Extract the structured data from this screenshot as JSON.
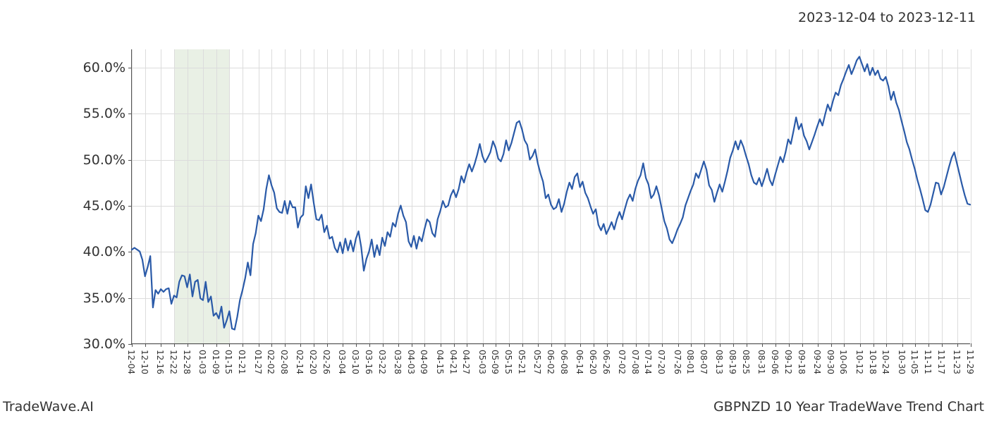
{
  "header": {
    "date_range": "2023-12-04 to 2023-12-11"
  },
  "footer": {
    "left": "TradeWave.AI",
    "right": "GBPNZD 10 Year TradeWave Trend Chart"
  },
  "chart": {
    "type": "line",
    "background_color": "#ffffff",
    "grid_color": "#dcdcdc",
    "axis_color": "#555555",
    "text_color": "#333333",
    "line_color": "#2a5aa8",
    "line_width": 2.2,
    "highlight_band": {
      "color": "#d7e3cf",
      "x_start_index": 3,
      "x_end_index": 7
    },
    "ylim": [
      30,
      62
    ],
    "yticks": [
      30.0,
      35.0,
      40.0,
      45.0,
      50.0,
      55.0,
      60.0
    ],
    "ytick_labels": [
      "30.0%",
      "35.0%",
      "40.0%",
      "45.0%",
      "50.0%",
      "55.0%",
      "60.0%"
    ],
    "ytick_fontsize": 19,
    "xtick_labels": [
      "12-04",
      "12-10",
      "12-16",
      "12-22",
      "12-28",
      "01-03",
      "01-09",
      "01-15",
      "01-21",
      "01-27",
      "02-02",
      "02-08",
      "02-14",
      "02-20",
      "02-26",
      "03-04",
      "03-10",
      "03-16",
      "03-22",
      "03-28",
      "04-03",
      "04-09",
      "04-15",
      "04-21",
      "04-27",
      "05-03",
      "05-09",
      "05-15",
      "05-21",
      "05-27",
      "06-02",
      "06-08",
      "06-14",
      "06-20",
      "06-26",
      "07-02",
      "07-08",
      "07-14",
      "07-20",
      "07-26",
      "08-01",
      "08-07",
      "08-13",
      "08-19",
      "08-25",
      "08-31",
      "09-06",
      "09-12",
      "09-18",
      "09-24",
      "09-30",
      "10-06",
      "10-12",
      "10-18",
      "10-24",
      "10-30",
      "11-05",
      "11-11",
      "11-17",
      "11-23",
      "11-29"
    ],
    "xtick_fontsize": 12,
    "xtick_rotation": 90,
    "series": [
      40.2,
      40.4,
      40.2,
      40.0,
      39.1,
      37.3,
      38.3,
      39.5,
      33.9,
      35.8,
      35.4,
      35.9,
      35.6,
      35.9,
      36.0,
      34.3,
      35.2,
      35.0,
      36.7,
      37.4,
      37.3,
      36.1,
      37.5,
      35.1,
      36.7,
      36.9,
      34.9,
      34.7,
      36.7,
      34.5,
      35.1,
      33.0,
      33.3,
      32.7,
      34.0,
      31.7,
      32.5,
      33.5,
      31.6,
      31.5,
      32.9,
      34.7,
      35.8,
      37.1,
      38.8,
      37.4,
      40.8,
      42.0,
      43.9,
      43.3,
      44.6,
      46.8,
      48.3,
      47.2,
      46.4,
      44.7,
      44.3,
      44.2,
      45.5,
      44.1,
      45.5,
      44.8,
      44.8,
      42.6,
      43.7,
      44.0,
      47.1,
      45.8,
      47.3,
      45.3,
      43.5,
      43.4,
      44.0,
      42.1,
      42.8,
      41.4,
      41.6,
      40.4,
      39.9,
      41.0,
      39.8,
      41.4,
      40.1,
      41.2,
      40.0,
      41.4,
      42.2,
      40.5,
      37.9,
      39.2,
      40.0,
      41.3,
      39.4,
      40.7,
      39.6,
      41.5,
      40.6,
      42.1,
      41.6,
      43.1,
      42.7,
      44.1,
      45.0,
      43.9,
      43.2,
      41.1,
      40.5,
      41.7,
      40.3,
      41.6,
      41.1,
      42.4,
      43.5,
      43.2,
      42.0,
      41.6,
      43.5,
      44.4,
      45.5,
      44.8,
      45.0,
      46.1,
      46.7,
      45.9,
      46.8,
      48.2,
      47.5,
      48.6,
      49.5,
      48.7,
      49.5,
      50.5,
      51.7,
      50.4,
      49.7,
      50.2,
      50.8,
      52.0,
      51.3,
      50.1,
      49.8,
      50.6,
      52.1,
      51.0,
      51.8,
      52.9,
      54.0,
      54.2,
      53.3,
      52.1,
      51.6,
      50.0,
      50.4,
      51.1,
      49.6,
      48.5,
      47.6,
      45.8,
      46.2,
      45.1,
      44.6,
      44.8,
      45.7,
      44.3,
      45.2,
      46.5,
      47.5,
      46.8,
      48.1,
      48.5,
      47.0,
      47.6,
      46.4,
      45.8,
      44.9,
      44.1,
      44.6,
      42.9,
      42.3,
      43.0,
      41.9,
      42.5,
      43.2,
      42.4,
      43.5,
      44.3,
      43.5,
      44.6,
      45.6,
      46.2,
      45.5,
      46.8,
      47.7,
      48.3,
      49.6,
      48.0,
      47.3,
      45.8,
      46.2,
      47.1,
      46.1,
      44.7,
      43.3,
      42.5,
      41.3,
      40.9,
      41.6,
      42.4,
      43.0,
      43.7,
      45.0,
      45.8,
      46.6,
      47.3,
      48.5,
      48.0,
      48.9,
      49.8,
      48.9,
      47.2,
      46.7,
      45.4,
      46.4,
      47.3,
      46.5,
      47.6,
      48.8,
      50.2,
      51.0,
      52.0,
      51.1,
      52.1,
      51.4,
      50.4,
      49.5,
      48.3,
      47.5,
      47.3,
      48.0,
      47.1,
      48.0,
      49.0,
      47.8,
      47.2,
      48.3,
      49.3,
      50.3,
      49.7,
      50.8,
      52.2,
      51.7,
      53.1,
      54.6,
      53.3,
      53.9,
      52.6,
      52.0,
      51.1,
      51.9,
      52.7,
      53.6,
      54.4,
      53.7,
      54.9,
      56.0,
      55.3,
      56.4,
      57.3,
      57.0,
      58.1,
      58.8,
      59.6,
      60.3,
      59.3,
      60.0,
      60.8,
      61.2,
      60.4,
      59.6,
      60.4,
      59.2,
      60.0,
      59.2,
      59.7,
      58.8,
      58.6,
      59.0,
      58.0,
      56.5,
      57.4,
      56.2,
      55.4,
      54.2,
      53.1,
      51.9,
      51.1,
      50.0,
      49.0,
      47.8,
      46.8,
      45.7,
      44.5,
      44.3,
      45.1,
      46.3,
      47.5,
      47.4,
      46.2,
      47.0,
      48.1,
      49.2,
      50.2,
      50.8,
      49.6,
      48.4,
      47.2,
      46.1,
      45.2,
      45.1
    ]
  }
}
